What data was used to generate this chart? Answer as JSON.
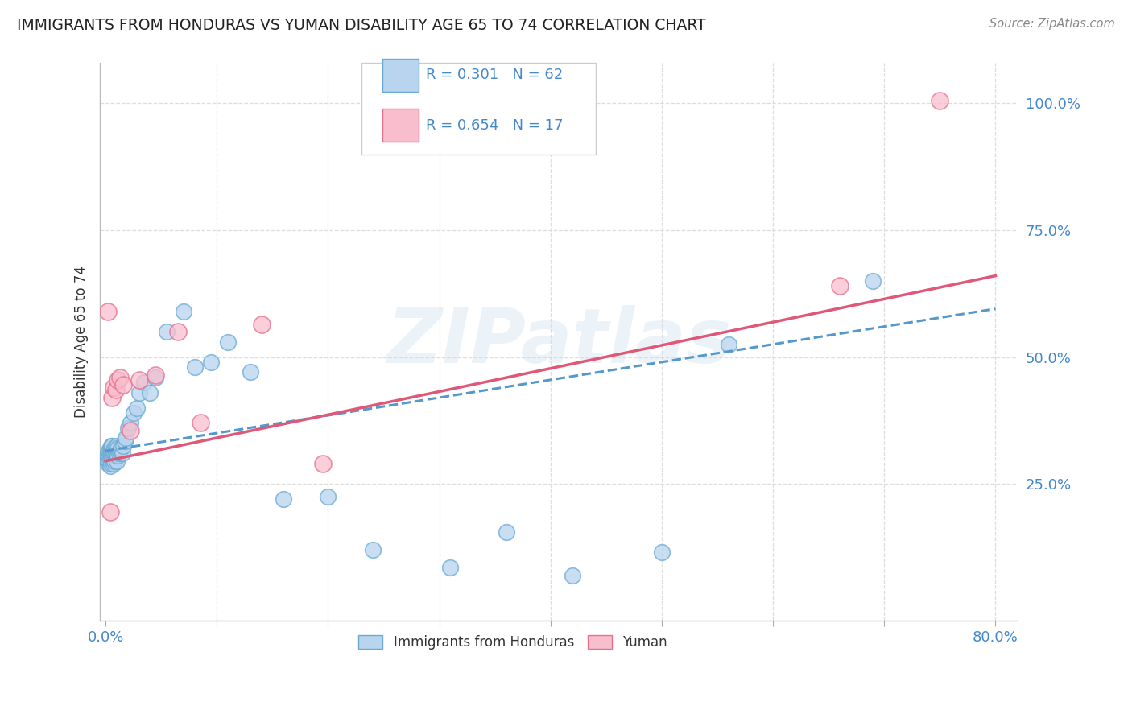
{
  "title": "IMMIGRANTS FROM HONDURAS VS YUMAN DISABILITY AGE 65 TO 74 CORRELATION CHART",
  "source": "Source: ZipAtlas.com",
  "ylabel": "Disability Age 65 to 74",
  "xlim": [
    -0.005,
    0.82
  ],
  "ylim": [
    -0.02,
    1.08
  ],
  "xticks": [
    0.0,
    0.1,
    0.2,
    0.3,
    0.4,
    0.5,
    0.6,
    0.7,
    0.8
  ],
  "yticks": [
    0.0,
    0.25,
    0.5,
    0.75,
    1.0
  ],
  "yticklabels": [
    "",
    "25.0%",
    "50.0%",
    "75.0%",
    "100.0%"
  ],
  "blue_fill": "#b8d4ee",
  "blue_edge": "#6aaad4",
  "pink_fill": "#f9bece",
  "pink_edge": "#e8708a",
  "blue_line_color": "#5599cc",
  "pink_line_color": "#e05878",
  "legend_text_color": "#4488cc",
  "watermark": "ZIPatlas",
  "blue_scatter_x": [
    0.001,
    0.001,
    0.002,
    0.002,
    0.002,
    0.003,
    0.003,
    0.003,
    0.004,
    0.004,
    0.004,
    0.004,
    0.005,
    0.005,
    0.005,
    0.005,
    0.006,
    0.006,
    0.006,
    0.007,
    0.007,
    0.007,
    0.008,
    0.008,
    0.008,
    0.009,
    0.009,
    0.01,
    0.01,
    0.01,
    0.011,
    0.011,
    0.012,
    0.013,
    0.014,
    0.015,
    0.016,
    0.017,
    0.018,
    0.02,
    0.022,
    0.025,
    0.028,
    0.03,
    0.035,
    0.04,
    0.045,
    0.055,
    0.07,
    0.08,
    0.095,
    0.11,
    0.13,
    0.16,
    0.2,
    0.24,
    0.31,
    0.36,
    0.42,
    0.5,
    0.56,
    0.69
  ],
  "blue_scatter_y": [
    0.295,
    0.305,
    0.29,
    0.3,
    0.31,
    0.295,
    0.305,
    0.315,
    0.285,
    0.3,
    0.31,
    0.32,
    0.29,
    0.305,
    0.315,
    0.325,
    0.3,
    0.315,
    0.325,
    0.29,
    0.305,
    0.315,
    0.295,
    0.31,
    0.32,
    0.305,
    0.32,
    0.295,
    0.31,
    0.325,
    0.305,
    0.32,
    0.31,
    0.315,
    0.32,
    0.31,
    0.325,
    0.335,
    0.34,
    0.36,
    0.37,
    0.39,
    0.4,
    0.43,
    0.45,
    0.43,
    0.46,
    0.55,
    0.59,
    0.48,
    0.49,
    0.53,
    0.47,
    0.22,
    0.225,
    0.12,
    0.085,
    0.155,
    0.07,
    0.115,
    0.525,
    0.65
  ],
  "pink_scatter_x": [
    0.002,
    0.004,
    0.006,
    0.007,
    0.009,
    0.011,
    0.013,
    0.016,
    0.022,
    0.03,
    0.045,
    0.065,
    0.085,
    0.14,
    0.195,
    0.66,
    0.75
  ],
  "pink_scatter_y": [
    0.59,
    0.195,
    0.42,
    0.44,
    0.435,
    0.455,
    0.46,
    0.445,
    0.355,
    0.455,
    0.465,
    0.55,
    0.37,
    0.565,
    0.29,
    0.64,
    1.005
  ],
  "blue_line_x": [
    0.0,
    0.8
  ],
  "blue_line_y": [
    0.315,
    0.595
  ],
  "pink_line_x": [
    0.0,
    0.8
  ],
  "pink_line_y": [
    0.295,
    0.66
  ],
  "background_color": "#ffffff",
  "grid_color": "#dddddd"
}
